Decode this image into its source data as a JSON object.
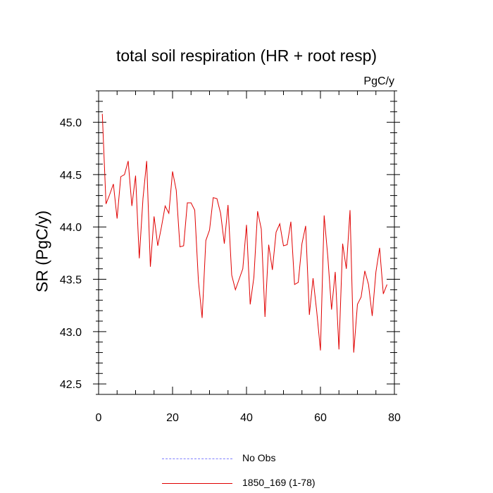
{
  "chart_data": {
    "type": "line",
    "title": "total soil respiration (HR + root resp)",
    "units_label": "PgC/y",
    "xlabel": "",
    "ylabel": "SR  (PgC/y)",
    "xlim": [
      0,
      80
    ],
    "ylim": [
      42.4,
      45.3
    ],
    "x_ticks": [
      0,
      20,
      40,
      60,
      80
    ],
    "x_tick_labels": [
      "0",
      "20",
      "40",
      "60",
      "80"
    ],
    "y_ticks": [
      42.5,
      43.0,
      43.5,
      44.0,
      44.5,
      45.0
    ],
    "y_tick_labels": [
      "42.5",
      "43.0",
      "43.5",
      "44.0",
      "44.5",
      "45.0"
    ],
    "grid": false,
    "legend": [
      {
        "name": "No Obs",
        "style": "dashed",
        "color": "#8080ff"
      },
      {
        "name": "1850_169 (1-78)",
        "style": "solid",
        "color": "#e00000"
      }
    ],
    "series": [
      {
        "name": "1850_169 (1-78)",
        "color": "#e00000",
        "x": [
          1,
          2,
          3,
          4,
          5,
          6,
          7,
          8,
          9,
          10,
          11,
          12,
          13,
          14,
          15,
          16,
          17,
          18,
          19,
          20,
          21,
          22,
          23,
          24,
          25,
          26,
          27,
          28,
          29,
          30,
          31,
          32,
          33,
          34,
          35,
          36,
          37,
          38,
          39,
          40,
          41,
          42,
          43,
          44,
          45,
          46,
          47,
          48,
          49,
          50,
          51,
          52,
          53,
          54,
          55,
          56,
          57,
          58,
          59,
          60,
          61,
          62,
          63,
          64,
          65,
          66,
          67,
          68,
          69,
          70,
          71,
          72,
          73,
          74,
          75,
          76,
          77,
          78
        ],
        "values": [
          45.08,
          44.22,
          44.31,
          44.41,
          44.08,
          44.48,
          44.5,
          44.63,
          44.2,
          44.49,
          43.7,
          44.27,
          44.63,
          43.62,
          44.1,
          43.82,
          44.0,
          44.2,
          44.13,
          44.53,
          44.35,
          43.81,
          43.82,
          44.23,
          44.23,
          44.16,
          43.48,
          43.13,
          43.87,
          43.97,
          44.28,
          44.27,
          44.13,
          43.84,
          44.21,
          43.54,
          43.4,
          43.5,
          43.6,
          44.02,
          43.26,
          43.52,
          44.15,
          43.98,
          43.14,
          43.83,
          43.59,
          43.95,
          44.03,
          43.82,
          43.83,
          44.05,
          43.45,
          43.47,
          43.84,
          44.01,
          43.16,
          43.51,
          43.19,
          42.82,
          44.11,
          43.71,
          43.21,
          43.57,
          42.83,
          43.84,
          43.6,
          44.16,
          42.8,
          43.26,
          43.33,
          43.58,
          43.45,
          43.15,
          43.57,
          43.8,
          43.36,
          43.45
        ]
      }
    ]
  }
}
